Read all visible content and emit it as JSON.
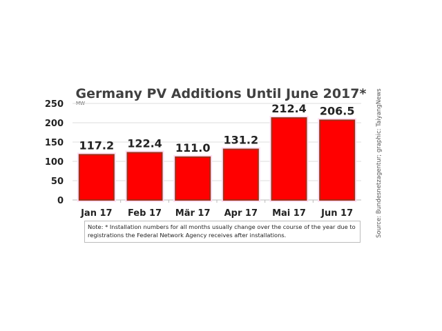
{
  "chart_data": {
    "type": "bar",
    "title": "Germany PV Additions Until June 2017*",
    "ylabel": "MW",
    "categories": [
      "Jan 17",
      "Feb 17",
      "Mär 17",
      "Apr 17",
      "Mai 17",
      "Jun 17"
    ],
    "values": [
      117.2,
      122.4,
      111.0,
      131.2,
      212.4,
      206.5
    ],
    "data_labels": [
      "117.2",
      "122.4",
      "111.0",
      "131.2",
      "212.4",
      "206.5"
    ],
    "ylim": [
      0,
      250
    ],
    "yticks": [
      0,
      50,
      100,
      150,
      200,
      250
    ],
    "grid": true,
    "bar_color": "#ff0000",
    "bar_edge_color": "#a0301a",
    "note": "Note: * Installation numbers for all months usually change over the course of the year due to registrations the Federal Network Agency receives after installations.",
    "source": "Source: Bundesnetzagentur; graphic: TaiyangNews"
  }
}
